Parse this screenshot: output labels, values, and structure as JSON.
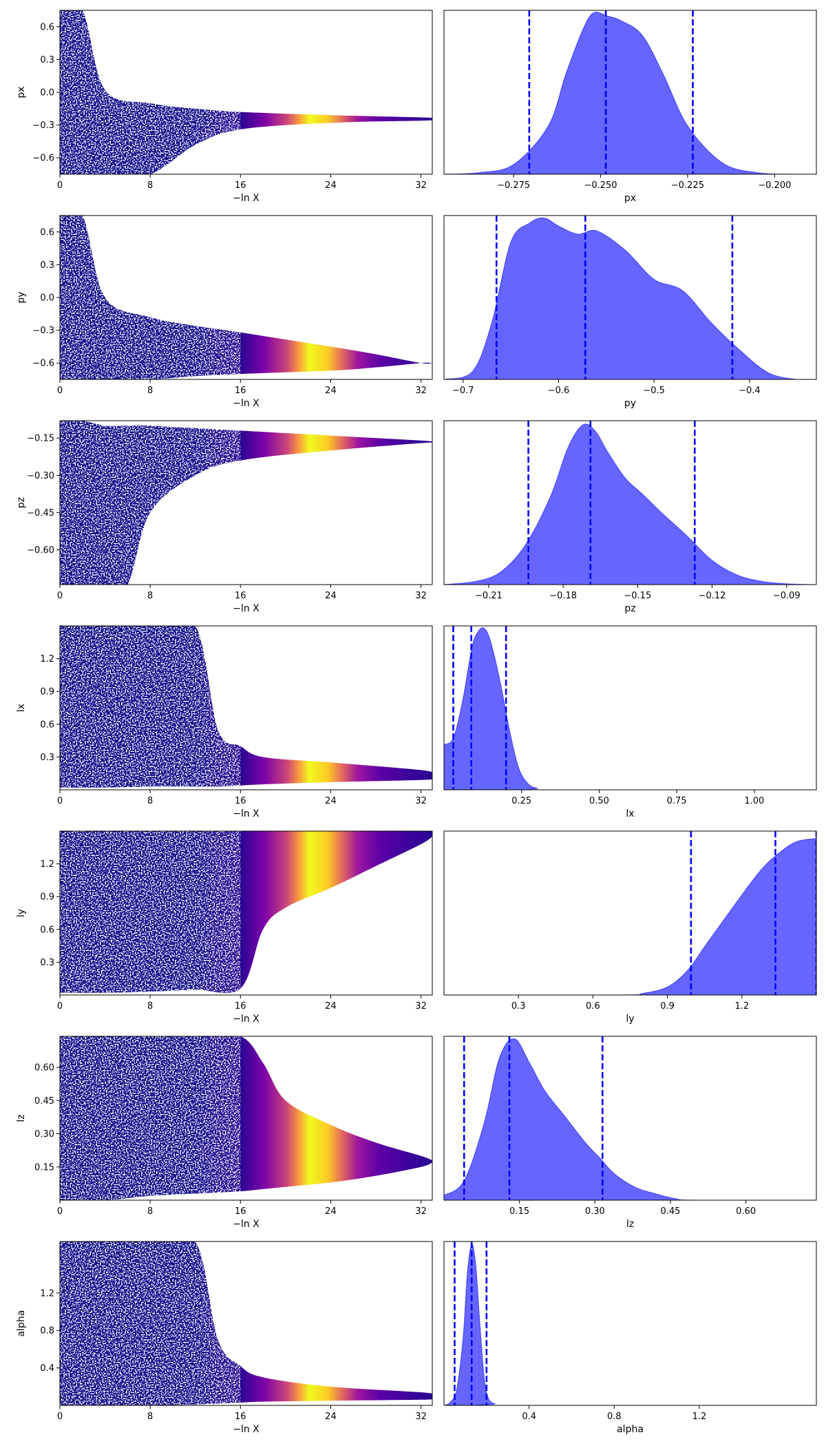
{
  "chart_data": [
    {
      "type": "scatter",
      "panel": "trace",
      "parameter": "px",
      "xlabel": "−ln X",
      "ylabel": "px",
      "xlim": [
        0,
        33
      ],
      "ylim": [
        -0.75,
        0.75
      ],
      "xticks": [
        "0",
        "8",
        "16",
        "24",
        "32"
      ],
      "yticks": [
        "0.6",
        "0.3",
        "0.0",
        "−0.3",
        "−0.6"
      ],
      "ytick_values": [
        0.6,
        0.3,
        0.0,
        -0.3,
        -0.6
      ],
      "envelope": {
        "x": [
          0,
          2,
          4,
          8,
          12,
          16,
          24,
          32,
          33
        ],
        "lo": [
          -0.75,
          -0.75,
          -0.75,
          -0.75,
          -0.48,
          -0.34,
          -0.28,
          -0.26,
          -0.255
        ],
        "hi": [
          0.75,
          0.75,
          0.02,
          -0.1,
          -0.15,
          -0.18,
          -0.21,
          -0.23,
          -0.235
        ]
      },
      "colorbar_peak_x": 22
    },
    {
      "type": "area",
      "panel": "marginal",
      "parameter": "px",
      "xlabel": "px",
      "xlim": [
        -0.295,
        -0.188
      ],
      "xticks": [
        "−0.275",
        "−0.250",
        "−0.225",
        "−0.200"
      ],
      "xtick_values": [
        -0.275,
        -0.25,
        -0.225,
        -0.2
      ],
      "x": [
        -0.295,
        -0.285,
        -0.275,
        -0.265,
        -0.26,
        -0.255,
        -0.252,
        -0.248,
        -0.244,
        -0.238,
        -0.232,
        -0.225,
        -0.215,
        -0.205,
        -0.195,
        -0.188
      ],
      "density": [
        0,
        0.01,
        0.06,
        0.3,
        0.62,
        0.9,
        1.0,
        0.98,
        0.95,
        0.86,
        0.62,
        0.3,
        0.07,
        0.01,
        0,
        0
      ],
      "quantile_lines": [
        -0.2705,
        -0.2485,
        -0.2235
      ]
    },
    {
      "type": "scatter",
      "panel": "trace",
      "parameter": "py",
      "xlabel": "−ln X",
      "ylabel": "py",
      "xlim": [
        0,
        33
      ],
      "ylim": [
        -0.75,
        0.75
      ],
      "xticks": [
        "0",
        "8",
        "16",
        "24",
        "32"
      ],
      "yticks": [
        "0.6",
        "0.3",
        "0.0",
        "−0.3",
        "−0.6"
      ],
      "ytick_values": [
        0.6,
        0.3,
        0.0,
        -0.3,
        -0.6
      ],
      "envelope": {
        "x": [
          0,
          2,
          4,
          8,
          12,
          16,
          24,
          28,
          32,
          33
        ],
        "lo": [
          -0.75,
          -0.75,
          -0.75,
          -0.75,
          -0.72,
          -0.7,
          -0.67,
          -0.64,
          -0.6,
          -0.6
        ],
        "hi": [
          0.75,
          0.75,
          0.0,
          -0.18,
          -0.26,
          -0.32,
          -0.45,
          -0.52,
          -0.6,
          -0.6
        ]
      },
      "colorbar_peak_x": 22
    },
    {
      "type": "area",
      "panel": "marginal",
      "parameter": "py",
      "xlabel": "py",
      "xlim": [
        -0.72,
        -0.33
      ],
      "xticks": [
        "−0.7",
        "−0.6",
        "−0.5",
        "−0.4"
      ],
      "xtick_values": [
        -0.7,
        -0.6,
        -0.5,
        -0.4
      ],
      "x": [
        -0.72,
        -0.69,
        -0.67,
        -0.65,
        -0.63,
        -0.615,
        -0.6,
        -0.58,
        -0.56,
        -0.53,
        -0.5,
        -0.47,
        -0.44,
        -0.41,
        -0.38,
        -0.35,
        -0.33
      ],
      "density": [
        0,
        0.05,
        0.35,
        0.85,
        0.97,
        1.0,
        0.95,
        0.9,
        0.92,
        0.8,
        0.62,
        0.55,
        0.35,
        0.18,
        0.04,
        0.0,
        0
      ],
      "quantile_lines": [
        -0.665,
        -0.572,
        -0.418
      ]
    },
    {
      "type": "scatter",
      "panel": "trace",
      "parameter": "pz",
      "xlabel": "−ln X",
      "ylabel": "pz",
      "xlim": [
        0,
        33
      ],
      "ylim": [
        -0.74,
        -0.08
      ],
      "xticks": [
        "0",
        "8",
        "16",
        "24",
        "32"
      ],
      "yticks": [
        "−0.15",
        "−0.30",
        "−0.45",
        "−0.60"
      ],
      "ytick_values": [
        -0.15,
        -0.3,
        -0.45,
        -0.6
      ],
      "envelope": {
        "x": [
          0,
          2,
          4,
          6,
          8,
          12,
          16,
          24,
          32,
          33
        ],
        "lo": [
          -0.74,
          -0.74,
          -0.74,
          -0.74,
          -0.45,
          -0.3,
          -0.24,
          -0.2,
          -0.17,
          -0.17
        ],
        "hi": [
          -0.08,
          -0.08,
          -0.1,
          -0.1,
          -0.1,
          -0.11,
          -0.12,
          -0.14,
          -0.16,
          -0.165
        ]
      },
      "colorbar_peak_x": 22
    },
    {
      "type": "area",
      "panel": "marginal",
      "parameter": "pz",
      "xlabel": "pz",
      "xlim": [
        -0.228,
        -0.078
      ],
      "xticks": [
        "−0.21",
        "−0.18",
        "−0.15",
        "−0.12",
        "−0.09"
      ],
      "xtick_values": [
        -0.21,
        -0.18,
        -0.15,
        -0.12,
        -0.09
      ],
      "x": [
        -0.228,
        -0.215,
        -0.205,
        -0.195,
        -0.185,
        -0.178,
        -0.172,
        -0.167,
        -0.162,
        -0.155,
        -0.148,
        -0.14,
        -0.13,
        -0.12,
        -0.11,
        -0.1,
        -0.09,
        -0.078
      ],
      "density": [
        0,
        0.02,
        0.08,
        0.25,
        0.55,
        0.85,
        0.99,
        0.95,
        0.82,
        0.66,
        0.56,
        0.44,
        0.3,
        0.15,
        0.06,
        0.02,
        0.005,
        0
      ],
      "quantile_lines": [
        -0.194,
        -0.169,
        -0.127
      ]
    },
    {
      "type": "scatter",
      "panel": "trace",
      "parameter": "lx",
      "xlabel": "−ln X",
      "ylabel": "lx",
      "xlim": [
        0,
        33
      ],
      "ylim": [
        0.0,
        1.5
      ],
      "xticks": [
        "0",
        "8",
        "16",
        "24",
        "32"
      ],
      "yticks": [
        "1.2",
        "0.9",
        "0.6",
        "0.3"
      ],
      "ytick_values": [
        1.2,
        0.9,
        0.6,
        0.3
      ],
      "envelope": {
        "x": [
          0,
          4,
          8,
          12,
          14,
          16,
          18,
          24,
          32,
          33
        ],
        "lo": [
          0.02,
          0.02,
          0.03,
          0.03,
          0.03,
          0.04,
          0.05,
          0.07,
          0.09,
          0.1
        ],
        "hi": [
          1.5,
          1.5,
          1.5,
          1.5,
          0.55,
          0.4,
          0.3,
          0.25,
          0.18,
          0.15
        ]
      },
      "colorbar_peak_x": 22
    },
    {
      "type": "area",
      "panel": "marginal",
      "parameter": "lx",
      "xlabel": "lx",
      "xlim": [
        0.0,
        1.2
      ],
      "xticks": [
        "0.25",
        "0.50",
        "0.75",
        "1.00"
      ],
      "xtick_values": [
        0.25,
        0.5,
        0.75,
        1.0
      ],
      "x": [
        0.0,
        0.03,
        0.06,
        0.09,
        0.11,
        0.13,
        0.15,
        0.18,
        0.21,
        0.24,
        0.27,
        0.3,
        0.35,
        1.2
      ],
      "density": [
        0.28,
        0.32,
        0.55,
        0.88,
        0.98,
        1.0,
        0.92,
        0.68,
        0.38,
        0.14,
        0.04,
        0.01,
        0,
        0
      ],
      "quantile_lines": [
        0.03,
        0.088,
        0.2
      ]
    },
    {
      "type": "scatter",
      "panel": "trace",
      "parameter": "ly",
      "xlabel": "−ln X",
      "ylabel": "ly",
      "xlim": [
        0,
        33
      ],
      "ylim": [
        0.0,
        1.5
      ],
      "xticks": [
        "0",
        "8",
        "16",
        "24",
        "32"
      ],
      "yticks": [
        "1.2",
        "0.9",
        "0.6",
        "0.3"
      ],
      "ytick_values": [
        1.2,
        0.9,
        0.6,
        0.3
      ],
      "envelope": {
        "x": [
          0,
          4,
          8,
          12,
          16,
          18,
          20,
          24,
          28,
          32,
          33
        ],
        "lo": [
          0.02,
          0.02,
          0.03,
          0.05,
          0.06,
          0.6,
          0.8,
          0.98,
          1.18,
          1.38,
          1.45
        ],
        "hi": [
          1.5,
          1.5,
          1.5,
          1.5,
          1.5,
          1.5,
          1.5,
          1.5,
          1.5,
          1.5,
          1.5
        ]
      },
      "colorbar_peak_x": 22
    },
    {
      "type": "area",
      "panel": "marginal",
      "parameter": "ly",
      "xlabel": "ly",
      "xlim": [
        0.0,
        1.5
      ],
      "xticks": [
        "0.3",
        "0.6",
        "0.9",
        "1.2"
      ],
      "xtick_values": [
        0.3,
        0.6,
        0.9,
        1.2
      ],
      "x": [
        0.0,
        0.7,
        0.8,
        0.9,
        0.98,
        1.05,
        1.12,
        1.2,
        1.28,
        1.35,
        1.42,
        1.5
      ],
      "density": [
        0,
        0,
        0.01,
        0.05,
        0.15,
        0.3,
        0.45,
        0.62,
        0.78,
        0.88,
        0.95,
        0.97
      ],
      "quantile_lines": [
        0.995,
        1.335,
        1.5
      ]
    },
    {
      "type": "scatter",
      "panel": "trace",
      "parameter": "lz",
      "xlabel": "−ln X",
      "ylabel": "lz",
      "xlim": [
        0,
        33
      ],
      "ylim": [
        0.0,
        0.74
      ],
      "xticks": [
        "0",
        "8",
        "16",
        "24",
        "32"
      ],
      "yticks": [
        "0.60",
        "0.45",
        "0.30",
        "0.15"
      ],
      "ytick_values": [
        0.6,
        0.45,
        0.3,
        0.15
      ],
      "envelope": {
        "x": [
          0,
          4,
          8,
          12,
          16,
          18,
          20,
          24,
          28,
          32,
          33
        ],
        "lo": [
          0.0,
          0.0,
          0.02,
          0.03,
          0.04,
          0.05,
          0.06,
          0.08,
          0.11,
          0.15,
          0.17
        ],
        "hi": [
          0.74,
          0.74,
          0.74,
          0.74,
          0.74,
          0.62,
          0.45,
          0.34,
          0.26,
          0.2,
          0.18
        ]
      },
      "colorbar_peak_x": 22
    },
    {
      "type": "area",
      "panel": "marginal",
      "parameter": "lz",
      "xlabel": "lz",
      "xlim": [
        0.0,
        0.74
      ],
      "xticks": [
        "0.15",
        "0.30",
        "0.45",
        "0.60"
      ],
      "xtick_values": [
        0.15,
        0.3,
        0.45,
        0.6
      ],
      "x": [
        0.0,
        0.04,
        0.08,
        0.11,
        0.14,
        0.17,
        0.2,
        0.24,
        0.28,
        0.31,
        0.34,
        0.38,
        0.42,
        0.46,
        0.5,
        0.74
      ],
      "density": [
        0.03,
        0.12,
        0.48,
        0.88,
        1.0,
        0.85,
        0.68,
        0.52,
        0.36,
        0.26,
        0.16,
        0.08,
        0.04,
        0.01,
        0.0,
        0
      ],
      "quantile_lines": [
        0.04,
        0.13,
        0.315
      ]
    },
    {
      "type": "scatter",
      "panel": "trace",
      "parameter": "alpha",
      "xlabel": "−ln X",
      "ylabel": "alpha",
      "xlim": [
        0,
        33
      ],
      "ylim": [
        0.0,
        1.75
      ],
      "xticks": [
        "0",
        "8",
        "16",
        "24",
        "32"
      ],
      "yticks": [
        "1.2",
        "0.8",
        "0.4"
      ],
      "ytick_values": [
        1.2,
        0.8,
        0.4
      ],
      "envelope": {
        "x": [
          0,
          4,
          8,
          12,
          14,
          16,
          18,
          24,
          32,
          33
        ],
        "lo": [
          0.0,
          0.0,
          0.0,
          0.01,
          0.02,
          0.03,
          0.04,
          0.05,
          0.06,
          0.07
        ],
        "hi": [
          1.75,
          1.75,
          1.75,
          1.75,
          0.7,
          0.42,
          0.3,
          0.2,
          0.14,
          0.12
        ]
      },
      "colorbar_peak_x": 22
    },
    {
      "type": "area",
      "panel": "marginal",
      "parameter": "alpha",
      "xlabel": "alpha",
      "xlim": [
        0.0,
        1.75
      ],
      "xticks": [
        "0.4",
        "0.8",
        "1.2"
      ],
      "xtick_values": [
        0.4,
        0.8,
        1.2
      ],
      "x": [
        0.0,
        0.03,
        0.06,
        0.09,
        0.11,
        0.13,
        0.15,
        0.17,
        0.19,
        0.21,
        0.24,
        0.28,
        1.75
      ],
      "density": [
        0,
        0.02,
        0.1,
        0.42,
        0.82,
        1.0,
        0.86,
        0.48,
        0.16,
        0.04,
        0.01,
        0,
        0
      ],
      "quantile_lines": [
        0.05,
        0.13,
        0.2
      ]
    }
  ]
}
